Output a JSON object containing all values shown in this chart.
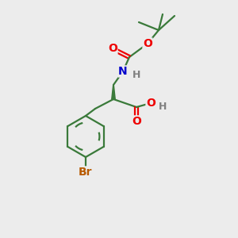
{
  "background_color": "#ececec",
  "bond_color": "#3a7a3a",
  "atom_colors": {
    "O": "#ee0000",
    "N": "#0000cc",
    "Br": "#b85a00",
    "H": "#808080"
  },
  "fig_size": [
    3.0,
    3.0
  ],
  "dpi": 100,
  "lw": 1.6,
  "font_size_atom": 10,
  "font_size_H": 9
}
